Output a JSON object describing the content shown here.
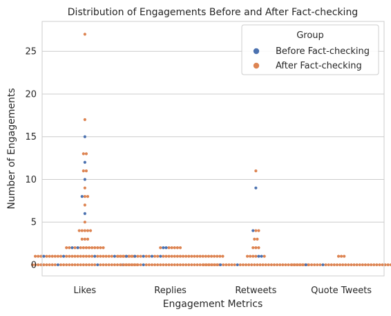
{
  "chart_data": {
    "type": "scatter",
    "subtype": "swarm",
    "title": "Distribution of Engagements Before and After Fact-checking",
    "xlabel": "Engagement Metrics",
    "ylabel": "Number of Engagements",
    "categories": [
      "Likes",
      "Replies",
      "Retweets",
      "Quote Tweets"
    ],
    "ylim": [
      -1.3,
      28.5
    ],
    "yticks": [
      0,
      5,
      10,
      15,
      20,
      25
    ],
    "grid": "horizontal",
    "legend": {
      "title": "Group",
      "position": "top-right",
      "entries": [
        "Before Fact-checking",
        "After Fact-checking"
      ]
    },
    "colors": {
      "Before Fact-checking": "#4c72b0",
      "After Fact-checking": "#dd8452"
    },
    "groups": {
      "Likes": [
        {
          "value": 27,
          "before": 0,
          "after": 1
        },
        {
          "value": 17,
          "before": 0,
          "after": 1
        },
        {
          "value": 15,
          "before": 1,
          "after": 0
        },
        {
          "value": 13,
          "before": 0,
          "after": 2
        },
        {
          "value": 12,
          "before": 1,
          "after": 0
        },
        {
          "value": 11,
          "before": 0,
          "after": 2
        },
        {
          "value": 10,
          "before": 1,
          "after": 0
        },
        {
          "value": 9,
          "before": 0,
          "after": 1
        },
        {
          "value": 8,
          "before": 1,
          "after": 2
        },
        {
          "value": 7,
          "before": 0,
          "after": 1
        },
        {
          "value": 6,
          "before": 1,
          "after": 0
        },
        {
          "value": 5,
          "before": 0,
          "after": 1
        },
        {
          "value": 4,
          "before": 0,
          "after": 5
        },
        {
          "value": 3,
          "before": 0,
          "after": 3
        },
        {
          "value": 2,
          "before": 2,
          "after": 12
        },
        {
          "value": 1,
          "before": 4,
          "after": 32
        },
        {
          "value": 0,
          "before": 3,
          "after": 35
        }
      ],
      "Replies": [
        {
          "value": 2,
          "before": 2,
          "after": 6
        },
        {
          "value": 1,
          "before": 5,
          "after": 33
        },
        {
          "value": 0,
          "before": 1,
          "after": 35
        }
      ],
      "Retweets": [
        {
          "value": 11,
          "before": 0,
          "after": 1
        },
        {
          "value": 9,
          "before": 1,
          "after": 0
        },
        {
          "value": 4,
          "before": 1,
          "after": 2
        },
        {
          "value": 3,
          "before": 0,
          "after": 2
        },
        {
          "value": 2,
          "before": 0,
          "after": 3
        },
        {
          "value": 1,
          "before": 2,
          "after": 5
        },
        {
          "value": 0,
          "before": 2,
          "after": 36
        }
      ],
      "Quote Tweets": [
        {
          "value": 1,
          "before": 0,
          "after": 3
        },
        {
          "value": 0,
          "before": 2,
          "after": 34
        }
      ]
    }
  }
}
